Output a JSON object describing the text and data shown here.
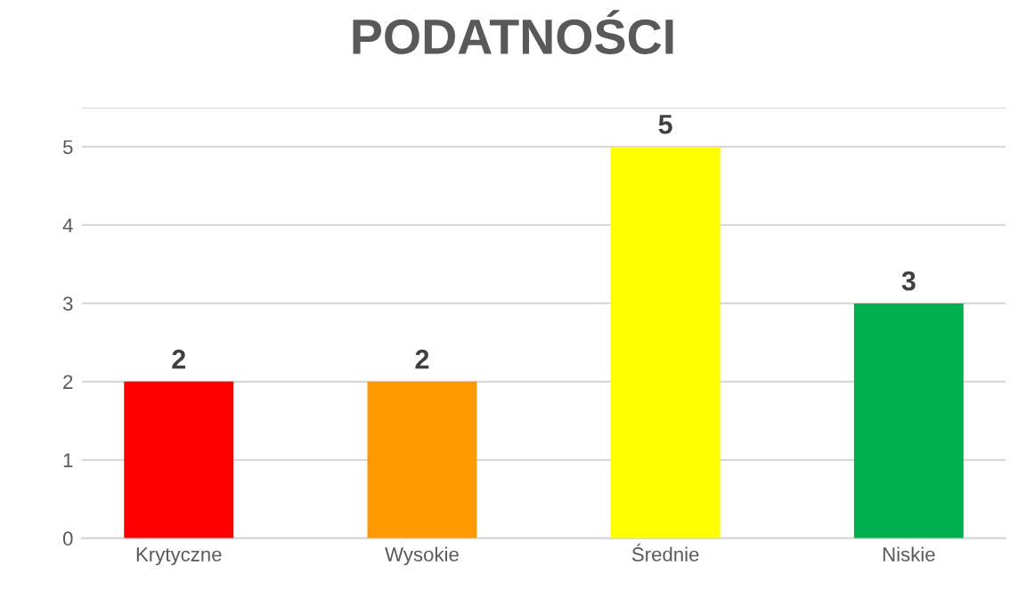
{
  "chart_data": {
    "type": "bar",
    "title": "PODATNOŚCI",
    "categories": [
      "Krytyczne",
      "Wysokie",
      "Średnie",
      "Niskie"
    ],
    "values": [
      2,
      2,
      5,
      3
    ],
    "colors": [
      "#ff0000",
      "#ff9900",
      "#ffff00",
      "#00b050"
    ],
    "ylim": [
      0,
      5.5
    ],
    "yticks": [
      0,
      1,
      2,
      3,
      4,
      5,
      {
        "value": 5.5,
        "label": null
      }
    ],
    "grid": "y",
    "data_labels": true,
    "legend": false
  }
}
